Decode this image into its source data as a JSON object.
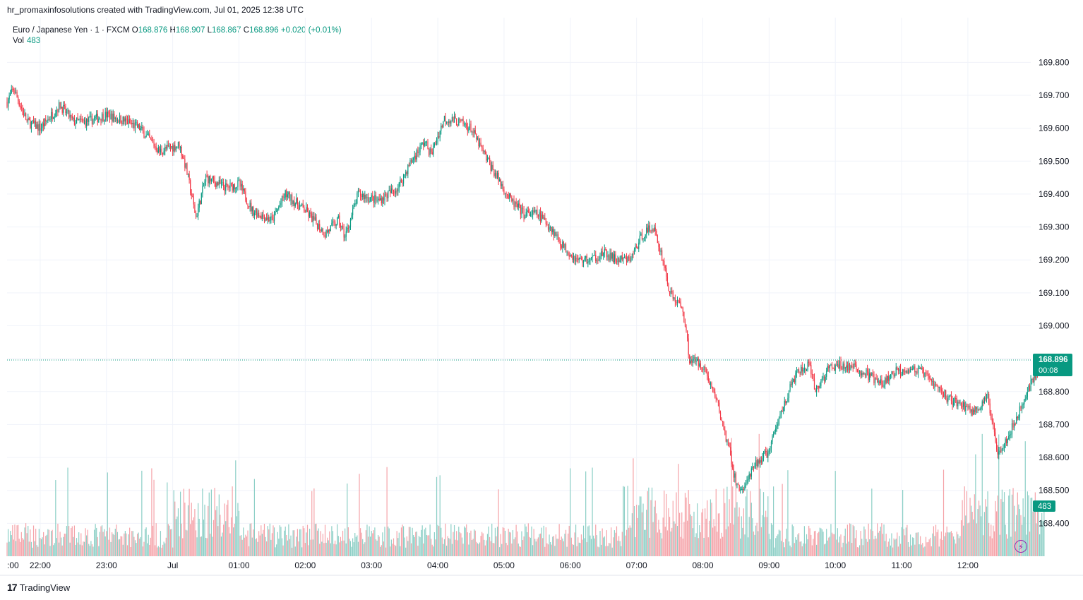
{
  "header": {
    "created_by": "hr_promaxinfosolutions created with TradingView.com, Jul 01, 2025 12:38 UTC"
  },
  "legend": {
    "symbol": "Euro / Japanese Yen · 1 · FXCM",
    "open_label": "O",
    "open": "168.876",
    "high_label": "H",
    "high": "168.907",
    "low_label": "L",
    "low": "168.867",
    "close_label": "C",
    "close": "168.896",
    "change": "+0.020 (+0.01%)",
    "vol_label": "Vol",
    "vol": "483"
  },
  "last_price": {
    "price": "168.896",
    "countdown": "00:08",
    "vol": "483"
  },
  "footer": {
    "brand": "TradingView",
    "logo_text": "17"
  },
  "colors": {
    "up": "#089981",
    "down": "#f23645",
    "vol_up": "#8ccfc6",
    "vol_down": "#f5a3a9",
    "grid": "#f0f3fa"
  },
  "chart_data": {
    "type": "candlestick",
    "ylim": [
      168.3,
      169.85
    ],
    "y_ticks": [
      "169.800",
      "169.700",
      "169.600",
      "169.500",
      "169.400",
      "169.300",
      "169.200",
      "169.100",
      "169.000",
      "168.900",
      "168.800",
      "168.700",
      "168.600",
      "168.500",
      "168.400"
    ],
    "x_ticks": [
      ":00",
      "22:00",
      "23:00",
      "Jul",
      "01:00",
      "02:00",
      "03:00",
      "04:00",
      "05:00",
      "06:00",
      "07:00",
      "08:00",
      "09:00",
      "10:00",
      "11:00",
      "12:00"
    ],
    "x_tick_pos": [
      0,
      0.5,
      1.5,
      2.5,
      3.5,
      4.5,
      5.5,
      6.5,
      7.5,
      8.5,
      9.5,
      10.5,
      11.5,
      12.5,
      13.5,
      14.5
    ],
    "x_hours_span": [
      0,
      15.3
    ],
    "price_path": [
      [
        0,
        169.68
      ],
      [
        0.1,
        169.72
      ],
      [
        0.3,
        169.62
      ],
      [
        0.5,
        169.6
      ],
      [
        0.8,
        169.67
      ],
      [
        1.0,
        169.62
      ],
      [
        1.2,
        169.62
      ],
      [
        1.5,
        169.64
      ],
      [
        1.8,
        169.62
      ],
      [
        2.0,
        169.6
      ],
      [
        2.3,
        169.53
      ],
      [
        2.6,
        169.55
      ],
      [
        2.7,
        169.48
      ],
      [
        2.85,
        169.33
      ],
      [
        3.0,
        169.45
      ],
      [
        3.3,
        169.42
      ],
      [
        3.5,
        169.43
      ],
      [
        3.7,
        169.35
      ],
      [
        4.0,
        169.32
      ],
      [
        4.2,
        169.4
      ],
      [
        4.5,
        169.35
      ],
      [
        4.8,
        169.28
      ],
      [
        5.0,
        169.32
      ],
      [
        5.1,
        169.27
      ],
      [
        5.3,
        169.4
      ],
      [
        5.6,
        169.38
      ],
      [
        5.9,
        169.42
      ],
      [
        6.1,
        169.5
      ],
      [
        6.3,
        169.56
      ],
      [
        6.4,
        169.52
      ],
      [
        6.6,
        169.63
      ],
      [
        6.8,
        169.62
      ],
      [
        7.0,
        169.6
      ],
      [
        7.2,
        169.52
      ],
      [
        7.4,
        169.45
      ],
      [
        7.6,
        169.38
      ],
      [
        7.8,
        169.34
      ],
      [
        8.0,
        169.34
      ],
      [
        8.2,
        169.3
      ],
      [
        8.4,
        169.24
      ],
      [
        8.6,
        169.2
      ],
      [
        8.8,
        169.2
      ],
      [
        9.0,
        169.22
      ],
      [
        9.2,
        169.2
      ],
      [
        9.4,
        169.2
      ],
      [
        9.6,
        169.28
      ],
      [
        9.75,
        169.3
      ],
      [
        9.9,
        169.2
      ],
      [
        10.0,
        169.1
      ],
      [
        10.2,
        169.05
      ],
      [
        10.3,
        168.9
      ],
      [
        10.5,
        168.88
      ],
      [
        10.7,
        168.78
      ],
      [
        10.9,
        168.62
      ],
      [
        11.0,
        168.52
      ],
      [
        11.1,
        168.5
      ],
      [
        11.3,
        168.58
      ],
      [
        11.5,
        168.62
      ],
      [
        11.7,
        168.75
      ],
      [
        11.9,
        168.85
      ],
      [
        12.1,
        168.88
      ],
      [
        12.2,
        168.8
      ],
      [
        12.4,
        168.87
      ],
      [
        12.6,
        168.88
      ],
      [
        12.8,
        168.87
      ],
      [
        13.0,
        168.85
      ],
      [
        13.2,
        168.82
      ],
      [
        13.4,
        168.86
      ],
      [
        13.6,
        168.87
      ],
      [
        13.8,
        168.86
      ],
      [
        14.0,
        168.82
      ],
      [
        14.2,
        168.78
      ],
      [
        14.4,
        168.76
      ],
      [
        14.6,
        168.74
      ],
      [
        14.8,
        168.78
      ],
      [
        14.95,
        168.62
      ],
      [
        15.1,
        168.66
      ],
      [
        15.3,
        168.75
      ],
      [
        15.5,
        168.85
      ],
      [
        15.65,
        168.896
      ]
    ],
    "last_close": 168.896
  }
}
